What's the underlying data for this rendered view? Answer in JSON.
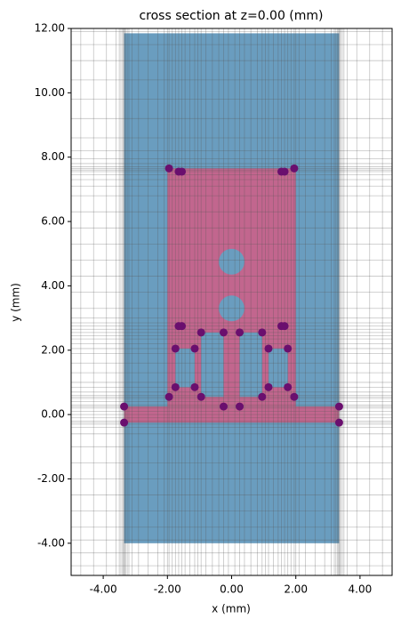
{
  "chart_data": {
    "type": "cross-section",
    "title": "cross section at z=0.00 (mm)",
    "x_label": "x (mm)",
    "y_label": "y (mm)",
    "xlim": [
      -5,
      5
    ],
    "ylim": [
      -5,
      12
    ],
    "xticks": [
      {
        "value": -4,
        "label": "-4.00"
      },
      {
        "value": -2,
        "label": "-2.00"
      },
      {
        "value": 0,
        "label": "0.00"
      },
      {
        "value": 2,
        "label": "2.00"
      },
      {
        "value": 4,
        "label": "4.00"
      }
    ],
    "yticks": [
      {
        "value": -4,
        "label": "-4.00"
      },
      {
        "value": -2,
        "label": "-2.00"
      },
      {
        "value": 0,
        "label": "0.00"
      },
      {
        "value": 2,
        "label": "2.00"
      },
      {
        "value": 4,
        "label": "4.00"
      },
      {
        "value": 6,
        "label": "6.00"
      },
      {
        "value": 8,
        "label": "8.00"
      },
      {
        "value": 10,
        "label": "10.00"
      },
      {
        "value": 12,
        "label": "12.00"
      }
    ],
    "mesh_color": "#555555",
    "mesh_x": [
      -4.7,
      -4.3,
      -3.9,
      -3.6,
      -3.5,
      -3.45,
      -3.4,
      -3.37,
      -3.35,
      -3.33,
      -3.3,
      -3.25,
      -3.2,
      -3.1,
      -2.9,
      -2.6,
      -2.3,
      -2.1,
      -2.0,
      -1.95,
      -1.85,
      -1.75,
      -1.65,
      -1.55,
      -1.45,
      -1.3,
      -1.15,
      -1.05,
      -0.95,
      -0.8,
      -0.6,
      -0.4,
      -0.25,
      -0.1,
      0.1,
      0.25,
      0.4,
      0.6,
      0.8,
      0.95,
      1.05,
      1.15,
      1.3,
      1.45,
      1.55,
      1.65,
      1.75,
      1.85,
      1.95,
      2.0,
      2.1,
      2.3,
      2.6,
      2.9,
      3.1,
      3.2,
      3.25,
      3.3,
      3.33,
      3.35,
      3.37,
      3.4,
      3.45,
      3.5,
      3.6,
      3.9,
      4.3,
      4.7
    ],
    "mesh_y": [
      -4.7,
      -4.3,
      -3.9,
      -3.5,
      -3.0,
      -2.5,
      -2.0,
      -1.5,
      -1.0,
      -0.6,
      -0.4,
      -0.3,
      -0.25,
      -0.2,
      -0.1,
      0.0,
      0.1,
      0.2,
      0.25,
      0.3,
      0.4,
      0.5,
      0.55,
      0.6,
      0.7,
      0.85,
      1.0,
      1.3,
      1.6,
      1.9,
      2.05,
      2.2,
      2.35,
      2.45,
      2.55,
      2.65,
      2.75,
      2.85,
      3.0,
      3.3,
      3.8,
      4.3,
      4.8,
      5.3,
      5.8,
      6.3,
      6.8,
      7.1,
      7.3,
      7.45,
      7.55,
      7.6,
      7.65,
      7.7,
      7.8,
      7.95,
      8.2,
      8.6,
      9.2,
      9.8,
      10.4,
      11.0,
      11.5,
      11.9
    ],
    "shapes": [
      {
        "kind": "rect",
        "x": [
          -3.35,
          3.35
        ],
        "y": [
          -4,
          11.85
        ],
        "color": "#6a9dbf"
      },
      {
        "kind": "rect",
        "x": [
          -3.35,
          3.35
        ],
        "y": [
          -0.25,
          0.25
        ],
        "color": "#c2668e"
      },
      {
        "kind": "rect",
        "x": [
          -2.0,
          2.0
        ],
        "y": [
          0.25,
          7.65
        ],
        "color": "#c2668e"
      },
      {
        "kind": "rect",
        "x": [
          -1.75,
          -1.15
        ],
        "y": [
          0.85,
          2.05
        ],
        "color": "#6a9dbf"
      },
      {
        "kind": "rect",
        "x": [
          -0.95,
          -0.25
        ],
        "y": [
          0.55,
          2.55
        ],
        "color": "#6a9dbf"
      },
      {
        "kind": "rect",
        "x": [
          0.25,
          0.95
        ],
        "y": [
          0.55,
          2.55
        ],
        "color": "#6a9dbf"
      },
      {
        "kind": "rect",
        "x": [
          1.15,
          1.75
        ],
        "y": [
          0.85,
          2.05
        ],
        "color": "#6a9dbf"
      },
      {
        "kind": "circle",
        "cx": 0,
        "cy": 4.75,
        "r": 0.4,
        "color": "#6a9dbf"
      },
      {
        "kind": "circle",
        "cx": 0,
        "cy": 3.3,
        "r": 0.4,
        "color": "#6a9dbf"
      }
    ],
    "points": {
      "color": "#6a0f6e",
      "x": [
        -1.95,
        -1.65,
        -1.55,
        1.55,
        1.65,
        1.95,
        -1.65,
        -1.55,
        1.55,
        1.65,
        -1.75,
        -1.15,
        1.15,
        1.75,
        -0.95,
        -0.25,
        0.25,
        0.95,
        -1.75,
        -1.15,
        1.15,
        1.75,
        -1.95,
        -0.95,
        0.95,
        1.95,
        -0.25,
        0.25,
        -3.35,
        -3.35,
        3.35,
        3.35
      ],
      "y": [
        7.65,
        7.55,
        7.55,
        7.55,
        7.55,
        7.65,
        2.75,
        2.75,
        2.75,
        2.75,
        2.05,
        2.05,
        2.05,
        2.05,
        2.55,
        2.55,
        2.55,
        2.55,
        0.85,
        0.85,
        0.85,
        0.85,
        0.55,
        0.55,
        0.55,
        0.55,
        0.25,
        0.25,
        0.25,
        -0.25,
        0.25,
        -0.25
      ]
    }
  }
}
